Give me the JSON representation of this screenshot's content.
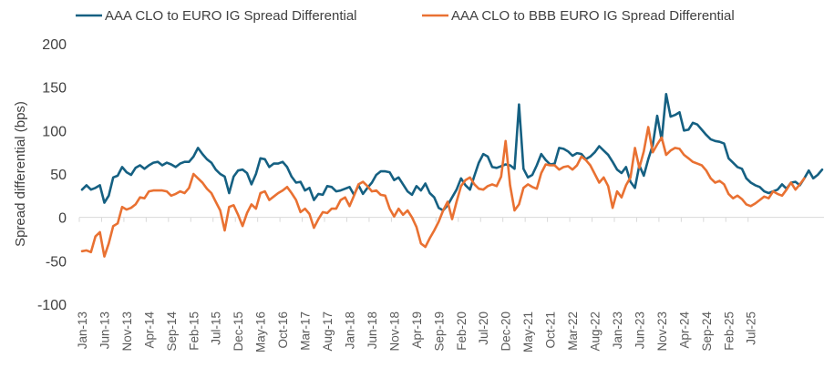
{
  "chart_data": {
    "type": "line",
    "title": "",
    "xlabel": "",
    "ylabel": "Spread differential (bps)",
    "ylim": [
      -100,
      200
    ],
    "yticks": [
      200,
      150,
      100,
      50,
      0,
      -50,
      -100
    ],
    "grid": false,
    "legend_position": "top",
    "x_start": "Jan-13",
    "x_frequency": "monthly",
    "x_tick_labels": [
      "Jan-13",
      "Jun-13",
      "Nov-13",
      "Apr-14",
      "Sep-14",
      "Feb-15",
      "Jul-15",
      "Dec-15",
      "May-16",
      "Oct-16",
      "Mar-17",
      "Aug-17",
      "Jan-18",
      "Jun-18",
      "Nov-18",
      "Apr-19",
      "Sep-19",
      "Feb-20",
      "Jul-20",
      "Dec-20",
      "May-21",
      "Oct-21",
      "Mar-22",
      "Aug-22",
      "Jan-23",
      "Jun-23",
      "Nov-23",
      "Apr-24",
      "Sep-24",
      "Feb-25",
      "Jul-25"
    ],
    "series": [
      {
        "name": "AAA CLO to EURO IG Spread Differential",
        "color": "#156082",
        "values": [
          32,
          37,
          32,
          34,
          37,
          17,
          25,
          46,
          48,
          58,
          52,
          49,
          57,
          60,
          56,
          60,
          63,
          64,
          60,
          63,
          61,
          58,
          62,
          64,
          64,
          70,
          80,
          73,
          67,
          63,
          55,
          50,
          47,
          28,
          47,
          54,
          55,
          51,
          38,
          50,
          68,
          67,
          58,
          62,
          62,
          64,
          58,
          47,
          40,
          41,
          31,
          34,
          20,
          27,
          26,
          36,
          35,
          30,
          31,
          33,
          35,
          26,
          37,
          27,
          34,
          40,
          49,
          53,
          53,
          52,
          43,
          46,
          38,
          30,
          26,
          36,
          31,
          39,
          28,
          23,
          11,
          8,
          14,
          23,
          32,
          45,
          37,
          32,
          48,
          63,
          73,
          70,
          58,
          57,
          59,
          61,
          60,
          56,
          130,
          56,
          46,
          49,
          60,
          73,
          66,
          61,
          62,
          80,
          79,
          76,
          71,
          74,
          73,
          67,
          70,
          75,
          82,
          77,
          72,
          64,
          55,
          51,
          58,
          41,
          34,
          60,
          48,
          67,
          83,
          117,
          89,
          142,
          116,
          118,
          121,
          100,
          101,
          109,
          107,
          101,
          95,
          90,
          88,
          87,
          85,
          68,
          63,
          58,
          56,
          45,
          40,
          37,
          35,
          30,
          28,
          30,
          32,
          38,
          33,
          40,
          41,
          37,
          45,
          54,
          45,
          49,
          55
        ]
      },
      {
        "name": "AAA CLO to BBB EURO IG Spread Differential",
        "color": "#E97132",
        "values": [
          -39,
          -38,
          -40,
          -22,
          -17,
          -45,
          -30,
          -10,
          -7,
          12,
          9,
          11,
          15,
          23,
          22,
          30,
          31,
          31,
          31,
          30,
          25,
          27,
          30,
          28,
          34,
          50,
          45,
          40,
          33,
          28,
          18,
          8,
          -15,
          12,
          14,
          3,
          -10,
          5,
          15,
          10,
          28,
          30,
          20,
          24,
          28,
          31,
          35,
          28,
          20,
          6,
          10,
          4,
          -12,
          -2,
          6,
          5,
          10,
          10,
          20,
          23,
          13,
          25,
          38,
          41,
          36,
          30,
          31,
          26,
          25,
          10,
          1,
          10,
          3,
          8,
          0,
          -11,
          -30,
          -34,
          -24,
          -15,
          -5,
          8,
          18,
          -2,
          18,
          36,
          43,
          46,
          38,
          33,
          32,
          36,
          38,
          36,
          47,
          88,
          37,
          8,
          15,
          34,
          38,
          35,
          33,
          51,
          61,
          60,
          60,
          55,
          58,
          59,
          55,
          60,
          70,
          66,
          60,
          50,
          40,
          46,
          36,
          11,
          30,
          23,
          37,
          46,
          80,
          57,
          76,
          104,
          75,
          84,
          92,
          72,
          77,
          80,
          79,
          72,
          68,
          64,
          62,
          60,
          54,
          45,
          40,
          42,
          38,
          27,
          22,
          25,
          21,
          15,
          13,
          16,
          20,
          24,
          22,
          30,
          27,
          25,
          32,
          40,
          32,
          38,
          45
        ]
      }
    ]
  }
}
